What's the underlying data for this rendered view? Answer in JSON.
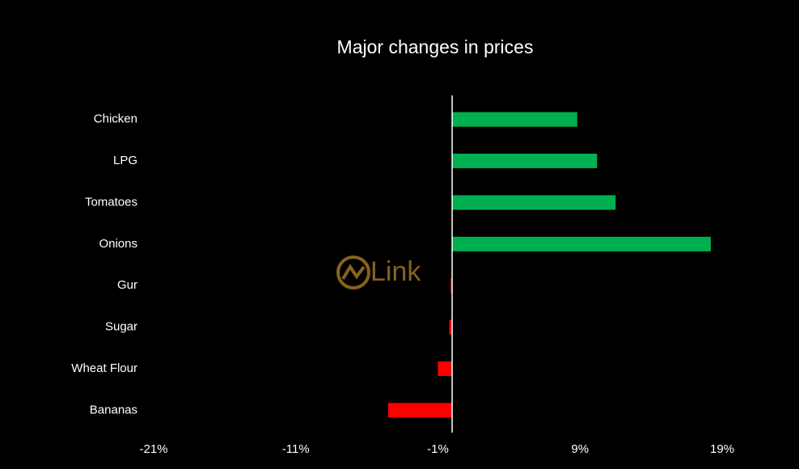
{
  "chart_data": {
    "type": "hbar",
    "title": "Major changes in prices",
    "categories": [
      "Chicken",
      "LPG",
      "Tomatoes",
      "Onions",
      "Gur",
      "Sugar",
      "Wheat Flour",
      "Bananas"
    ],
    "values": [
      8.8,
      10.2,
      11.5,
      18.2,
      -0.1,
      -0.2,
      -1.0,
      -4.5
    ],
    "colors": [
      "#00b050",
      "#00b050",
      "#00b050",
      "#00b050",
      "#ff0000",
      "#ff0000",
      "#ff0000",
      "#ff0000"
    ],
    "xlim": [
      -21,
      19
    ],
    "xticks": [
      {
        "value": -21,
        "label": "-21%"
      },
      {
        "value": -11,
        "label": "-11%"
      },
      {
        "value": -1,
        "label": "-1%"
      },
      {
        "value": 9,
        "label": "9%"
      },
      {
        "value": 19,
        "label": "19%"
      }
    ],
    "grid": false,
    "watermark": "Link"
  }
}
